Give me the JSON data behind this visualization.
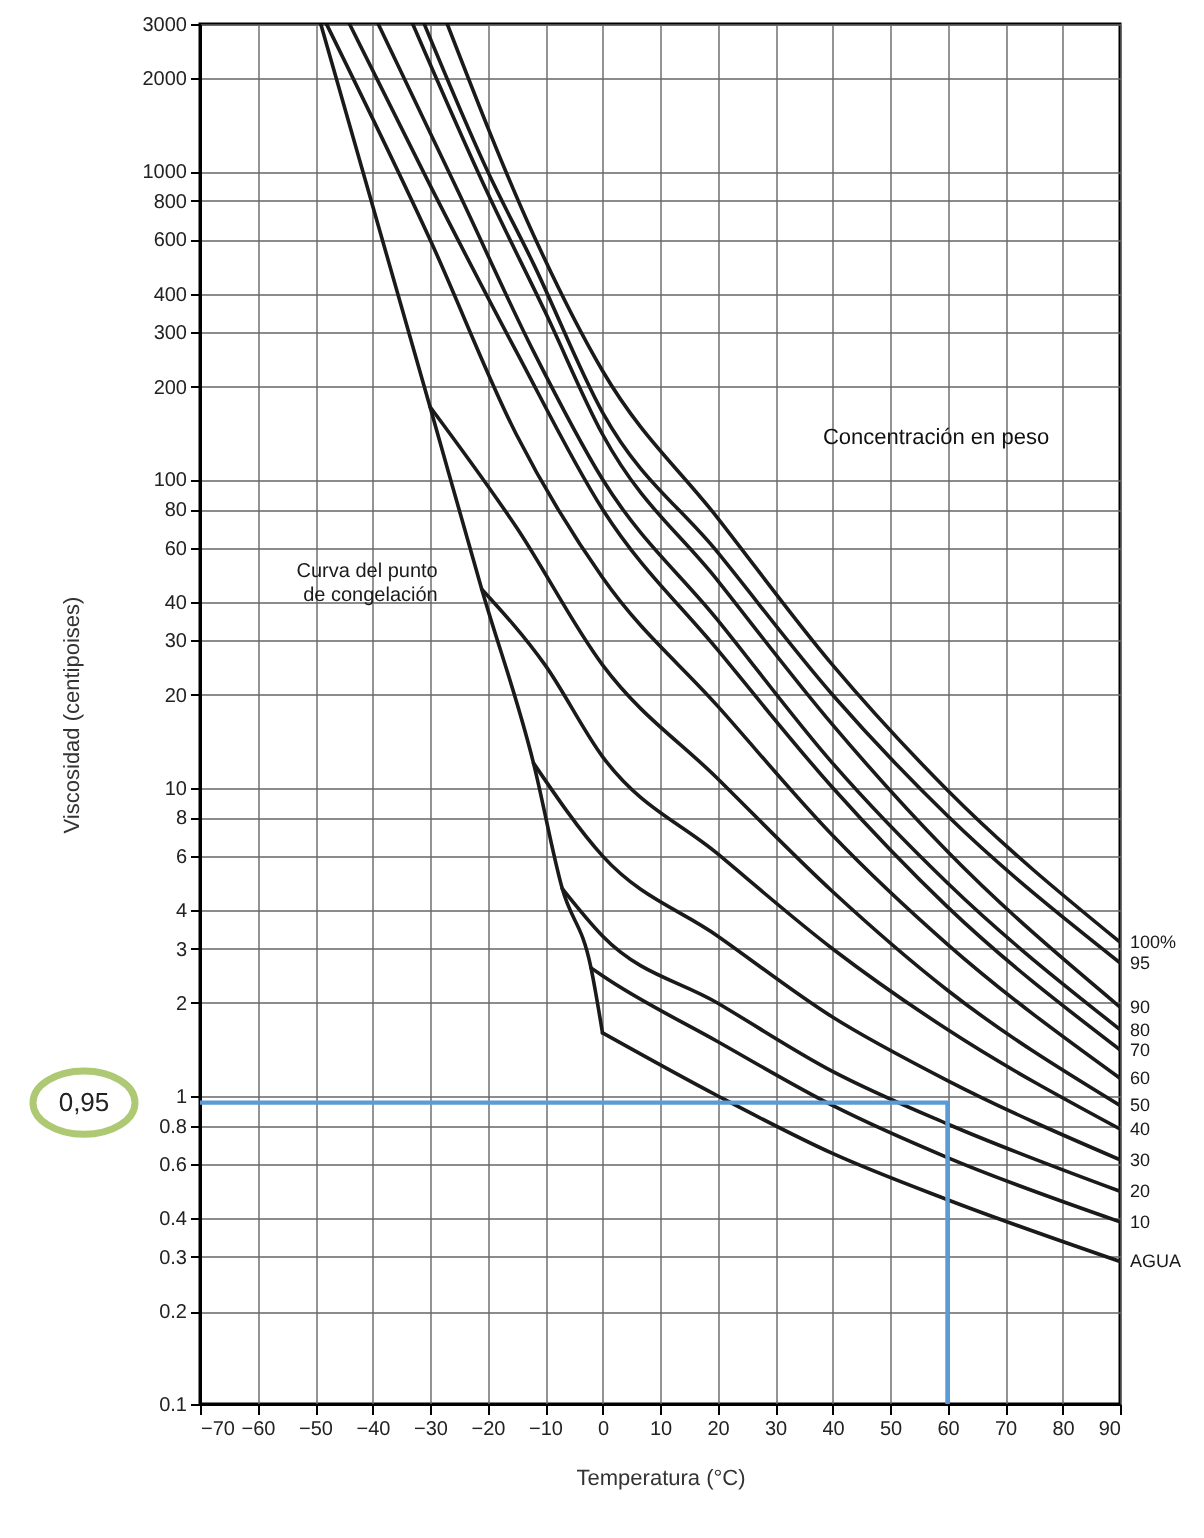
{
  "chart_data": {
    "type": "line",
    "xlabel": "Temperatura (°C)",
    "ylabel": "Viscosidad (centipoises)",
    "xlim": [
      -70,
      90
    ],
    "xticks": [
      -70,
      -60,
      -50,
      -40,
      -30,
      -20,
      -10,
      0,
      10,
      20,
      30,
      40,
      50,
      60,
      70,
      80,
      90
    ],
    "ylim": [
      0.1,
      3000
    ],
    "yticks": [
      0.1,
      0.2,
      0.3,
      0.4,
      0.6,
      0.8,
      1,
      2,
      3,
      4,
      6,
      8,
      10,
      20,
      30,
      40,
      60,
      80,
      100,
      200,
      300,
      400,
      600,
      800,
      1000,
      2000,
      3000
    ],
    "log": "y",
    "grid": true,
    "annotations": [
      "Concentración en peso",
      "0,95"
    ],
    "series": [
      {
        "name": "AGUA",
        "color": "#1a1a1a",
        "x": [
          0,
          20,
          40,
          60,
          90
        ],
        "values": [
          1.6,
          1.0,
          0.65,
          0.46,
          0.29
        ]
      },
      {
        "name": "10",
        "color": "#1a1a1a",
        "x": [
          -2,
          0,
          20,
          40,
          60,
          90
        ],
        "values": [
          2.6,
          2.45,
          1.5,
          0.93,
          0.63,
          0.39
        ]
      },
      {
        "name": "20",
        "color": "#1a1a1a",
        "x": [
          -7,
          0,
          20,
          40,
          60,
          90
        ],
        "values": [
          4.7,
          3.3,
          2.0,
          1.2,
          0.81,
          0.49
        ]
      },
      {
        "name": "30",
        "color": "#1a1a1a",
        "x": [
          -12,
          0,
          20,
          40,
          60,
          90
        ],
        "values": [
          12,
          6.0,
          3.3,
          1.8,
          1.12,
          0.62
        ]
      },
      {
        "name": "40",
        "color": "#1a1a1a",
        "x": [
          -21,
          -10,
          0,
          20,
          40,
          60,
          90
        ],
        "values": [
          44,
          25,
          12.6,
          6.1,
          3.0,
          1.64,
          0.78
        ]
      },
      {
        "name": "50",
        "color": "#1a1a1a",
        "x": [
          -30,
          -15,
          0,
          20,
          40,
          60,
          90
        ],
        "values": [
          172,
          70,
          25,
          10.7,
          4.6,
          2.2,
          0.93
        ]
      },
      {
        "name": "60",
        "color": "#1a1a1a",
        "x": [
          -48,
          -30,
          -15,
          0,
          20,
          40,
          60,
          90
        ],
        "values": [
          3000,
          600,
          140,
          48,
          18.4,
          7.0,
          3.1,
          1.14
        ]
      },
      {
        "name": "70",
        "color": "#1a1a1a",
        "x": [
          -44,
          -30,
          -15,
          0,
          20,
          40,
          60,
          90
        ],
        "values": [
          3000,
          900,
          260,
          80,
          28,
          10,
          4.1,
          1.41
        ]
      },
      {
        "name": "80",
        "color": "#1a1a1a",
        "x": [
          -39,
          -25,
          -12,
          0,
          20,
          40,
          60,
          90
        ],
        "values": [
          3000,
          850,
          260,
          100,
          35,
          12,
          4.9,
          1.64
        ]
      },
      {
        "name": "90",
        "color": "#1a1a1a",
        "x": [
          -33,
          -20,
          -10,
          0,
          20,
          40,
          60,
          90
        ],
        "values": [
          3000,
          850,
          350,
          140,
          47,
          16,
          6.2,
          1.94
        ]
      },
      {
        "name": "95",
        "color": "#1a1a1a",
        "x": [
          -31,
          -20,
          -12,
          0,
          20,
          40,
          60,
          90
        ],
        "values": [
          3000,
          1000,
          500,
          165,
          58,
          20,
          8.1,
          2.7
        ]
      },
      {
        "name": "100%",
        "color": "#1a1a1a",
        "x": [
          -27,
          -12,
          0,
          20,
          40,
          60,
          90
        ],
        "values": [
          3000,
          620,
          225,
          75,
          25,
          9.8,
          3.15
        ]
      },
      {
        "name": "Curva del punto de congelación",
        "color": "#1a1a1a",
        "x": [
          -49,
          -30,
          -21,
          -12,
          -7,
          -2,
          0
        ],
        "values": [
          3000,
          172,
          44,
          12,
          4.7,
          2.6,
          1.6
        ]
      },
      {
        "color": "#5b9bd5",
        "x": [
          -70,
          60,
          60
        ],
        "values": [
          0.95,
          0.95,
          0.1
        ]
      }
    ]
  }
}
